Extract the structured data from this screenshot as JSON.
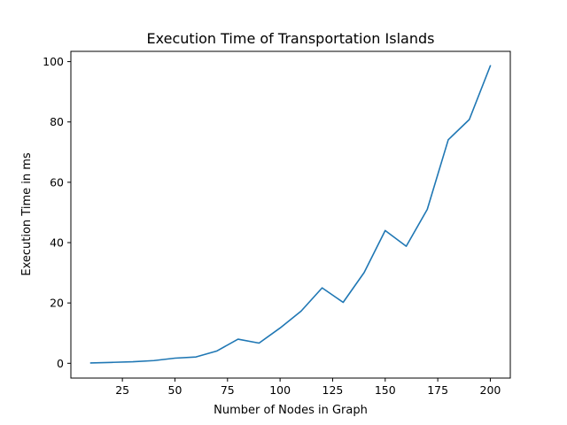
{
  "chart_data": {
    "type": "line",
    "title": "Execution Time of Transportation Islands",
    "xlabel": "Number of Nodes in Graph",
    "ylabel": "Execution Time in ms",
    "xlim": [
      0.5,
      209.5
    ],
    "ylim": [
      -4.9,
      103.4
    ],
    "xticks": [
      25,
      50,
      75,
      100,
      125,
      150,
      175,
      200
    ],
    "yticks": [
      0,
      20,
      40,
      60,
      80,
      100
    ],
    "grid": false,
    "series": [
      {
        "color": "#1f77b4",
        "x": [
          10,
          20,
          30,
          40,
          50,
          60,
          70,
          80,
          90,
          100,
          110,
          120,
          130,
          140,
          150,
          160,
          170,
          180,
          190,
          200
        ],
        "values": [
          0.1,
          0.3,
          0.5,
          0.9,
          1.7,
          2.1,
          4.1,
          8.0,
          6.7,
          11.7,
          17.3,
          25.0,
          20.2,
          30.1,
          44.0,
          38.8,
          51.0,
          74.1,
          80.8,
          98.6
        ]
      }
    ]
  }
}
